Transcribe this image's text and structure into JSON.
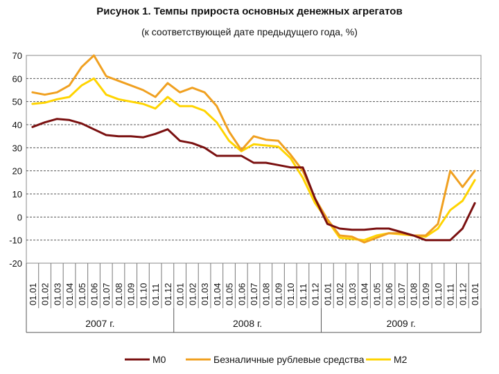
{
  "chart_data": {
    "type": "line",
    "title": "Рисунок 1. Темпы прироста основных денежных агрегатов",
    "subtitle": "(к соответствующей дате предыдущего года, %)",
    "ylim": [
      -20,
      70
    ],
    "yticks": [
      -20,
      -10,
      0,
      10,
      20,
      30,
      40,
      50,
      60,
      70
    ],
    "grid": true,
    "legend_position": "bottom",
    "x": [
      "01.01",
      "01.02",
      "01.03",
      "01.04",
      "01.05",
      "01.06",
      "01.07",
      "01.08",
      "01.09",
      "01.10",
      "01.11",
      "01.12",
      "01.01",
      "01.02",
      "01.03",
      "01.04",
      "01.05",
      "01.06",
      "01.07",
      "01.08",
      "01.09",
      "01.10",
      "01.11",
      "01.12",
      "01.01",
      "01.02",
      "01.03",
      "01.04",
      "01.05",
      "01.06",
      "01.07",
      "01.08",
      "01.09",
      "01.10",
      "01.11",
      "01.12",
      "01.01"
    ],
    "year_groups": [
      {
        "label": "2007 г.",
        "start": 0,
        "end": 11
      },
      {
        "label": "2008 г.",
        "start": 12,
        "end": 23
      },
      {
        "label": "2009 г.",
        "start": 24,
        "end": 36
      }
    ],
    "series": [
      {
        "name": "M0",
        "color": "#7a1010",
        "values": [
          39,
          41,
          42.5,
          42,
          40.5,
          38,
          35.5,
          35,
          35,
          34.5,
          36,
          38,
          33,
          32,
          30,
          26.5,
          26.5,
          26.5,
          23.5,
          23.5,
          22.5,
          21.5,
          21.5,
          8,
          -3,
          -5,
          -5.5,
          -5.5,
          -5,
          -5,
          -6.5,
          -8,
          -10,
          -10,
          -10,
          -5,
          6
        ]
      },
      {
        "name": "Безналичные рублевые средства",
        "color": "#f0a020",
        "values": [
          54,
          53,
          54,
          57,
          65,
          70,
          61,
          59,
          57,
          55,
          52,
          58,
          54,
          56,
          54,
          48,
          37,
          29,
          35,
          33.5,
          33,
          27,
          20,
          8,
          -1,
          -8,
          -8.5,
          -11,
          -9,
          -7,
          -7,
          -8,
          -8,
          -3,
          20,
          13,
          20
        ]
      },
      {
        "name": "M2",
        "color": "#ffd400",
        "values": [
          49,
          49.5,
          51,
          52,
          57,
          60,
          53,
          51,
          50,
          49,
          47,
          52,
          48,
          48,
          46,
          41,
          33,
          28.5,
          31.5,
          31,
          30.5,
          25.5,
          17,
          6,
          -1.5,
          -9,
          -9.5,
          -10,
          -8,
          -7,
          -7.5,
          -8,
          -8.5,
          -5,
          3,
          7,
          16
        ]
      }
    ]
  }
}
